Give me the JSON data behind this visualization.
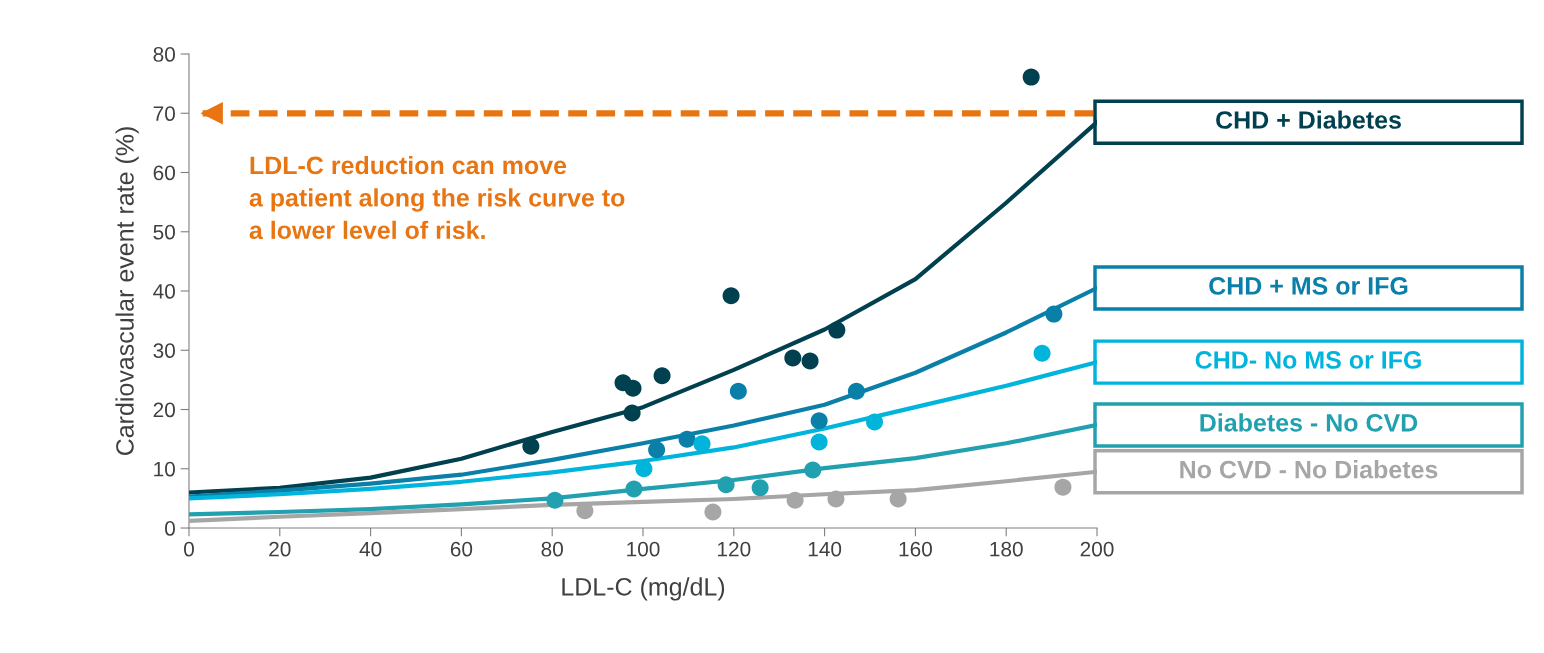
{
  "chart_data": {
    "type": "scatter",
    "xlabel": "LDL-C (mg/dL)",
    "ylabel": "Cardiovascular event rate (%)",
    "xlim": [
      0,
      200
    ],
    "ylim": [
      0,
      80
    ],
    "xticks": [
      0,
      20,
      40,
      60,
      80,
      100,
      120,
      140,
      160,
      180,
      200
    ],
    "yticks": [
      0,
      10,
      20,
      30,
      40,
      50,
      60,
      70,
      80
    ],
    "grid": false,
    "legend": false,
    "annotations": [
      "LDL-C reduction can move\na patient along the risk curve to\na lower level of risk."
    ],
    "ref_lines": [
      {
        "axis": "y",
        "value": 70,
        "color": "#e87511",
        "line_style": "dashed"
      }
    ],
    "series": [
      {
        "type": "line",
        "name": "CHD + Diabetes",
        "color": "#00404f",
        "x": [
          0,
          20,
          40,
          60,
          80,
          100,
          120,
          140,
          160,
          180,
          200
        ],
        "values": [
          6,
          6.8,
          8.5,
          11.7,
          16.2,
          20.4,
          26.7,
          33.5,
          42,
          54.9,
          68.5
        ]
      },
      {
        "type": "line",
        "name": "CHD + MS or IFG",
        "color": "#0a7fa8",
        "x": [
          0,
          20,
          40,
          60,
          80,
          100,
          120,
          140,
          160,
          180,
          200
        ],
        "values": [
          5.3,
          6.3,
          7.5,
          9,
          11.5,
          14.3,
          17.3,
          20.8,
          26.2,
          33,
          40.5
        ]
      },
      {
        "type": "line",
        "name": "CHD- No MS or IFG",
        "color": "#00b4dc",
        "x": [
          0,
          20,
          40,
          60,
          80,
          100,
          120,
          140,
          160,
          180,
          200
        ],
        "values": [
          5,
          5.7,
          6.6,
          7.8,
          9.4,
          11.3,
          13.6,
          16.8,
          20.4,
          24,
          28
        ]
      },
      {
        "type": "line",
        "name": "Diabetes - No CVD",
        "color": "#21a0b0",
        "x": [
          0,
          20,
          40,
          60,
          80,
          100,
          120,
          140,
          160,
          180,
          200
        ],
        "values": [
          2.3,
          2.7,
          3.2,
          4,
          5,
          6.6,
          8.1,
          10.1,
          11.8,
          14.3,
          17.4
        ]
      },
      {
        "type": "line",
        "name": "No CVD - No Diabetes",
        "color": "#a6a6a6",
        "x": [
          0,
          20,
          40,
          60,
          80,
          100,
          120,
          140,
          160,
          180,
          200
        ],
        "values": [
          1.2,
          1.9,
          2.5,
          3.2,
          3.9,
          4.4,
          4.9,
          5.7,
          6.4,
          7.9,
          9.5
        ]
      },
      {
        "marker": "circle",
        "color": "#00404f",
        "x": [
          75.3,
          95.6,
          97.8,
          97.6,
          104.2,
          119.4,
          133,
          136.8,
          142.7,
          185.5
        ],
        "values": [
          13.8,
          24.5,
          23.6,
          19.4,
          25.7,
          39.2,
          28.7,
          28.2,
          33.4,
          76.1
        ]
      },
      {
        "marker": "circle",
        "color": "#0a7fa8",
        "x": [
          103,
          109.7,
          121,
          138.8,
          147,
          190.5
        ],
        "values": [
          13.2,
          15,
          23.1,
          18.1,
          23.1,
          36.1
        ]
      },
      {
        "marker": "circle",
        "color": "#00b4dc",
        "x": [
          100.2,
          113,
          138.8,
          151,
          187.9
        ],
        "values": [
          10,
          14.2,
          14.5,
          17.9,
          29.5
        ]
      },
      {
        "marker": "circle",
        "color": "#21a0b0",
        "x": [
          80.6,
          98,
          118.3,
          125.8,
          137.4
        ],
        "values": [
          4.7,
          6.6,
          7.3,
          6.8,
          9.8
        ]
      },
      {
        "marker": "circle",
        "color": "#a6a6a6",
        "x": [
          87.2,
          115.4,
          133.5,
          142.5,
          156.2,
          192.5
        ],
        "values": [
          2.9,
          2.7,
          4.7,
          4.9,
          4.9,
          6.9
        ]
      }
    ]
  }
}
